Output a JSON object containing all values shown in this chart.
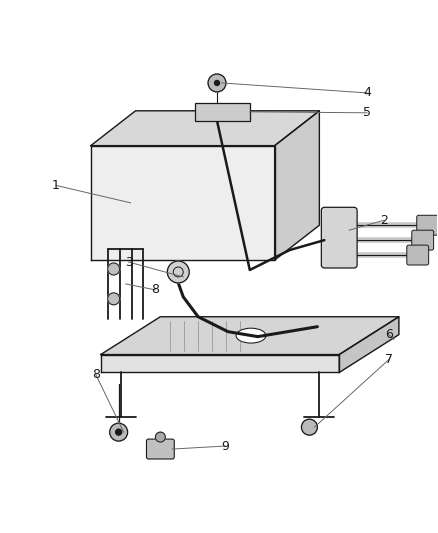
{
  "background_color": "#ffffff",
  "line_color": "#1a1a1a",
  "label_color": "#1a1a1a",
  "callout_color": "#666666",
  "fig_width": 4.38,
  "fig_height": 5.33,
  "dpi": 100
}
